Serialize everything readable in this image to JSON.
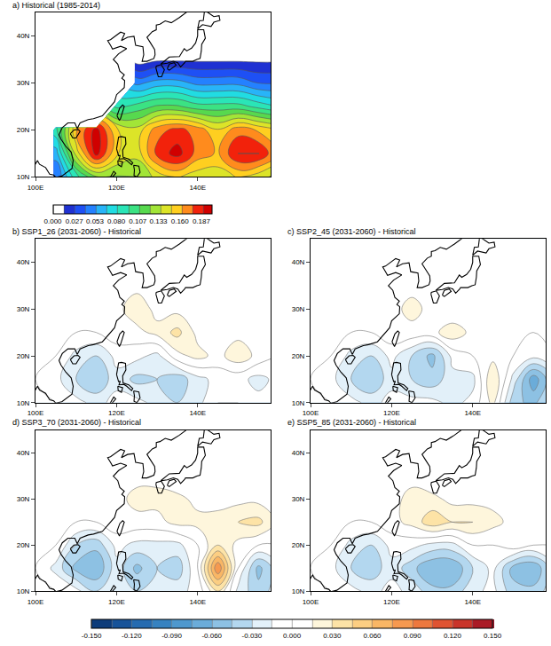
{
  "chart_data": [
    {
      "type": "contour",
      "title": "a) Historical (1985-2014)",
      "x": [
        100,
        105,
        110,
        115,
        120,
        125,
        130,
        135,
        140,
        145,
        150,
        155,
        160
      ],
      "y": [
        10,
        15,
        20,
        25,
        30,
        35,
        40,
        45
      ],
      "z": [
        [
          null,
          0.04,
          0.09,
          0.12,
          0.12,
          0.12,
          0.14,
          0.15,
          0.14,
          0.14,
          0.15,
          0.14,
          0.13
        ],
        [
          null,
          0.06,
          0.14,
          0.195,
          0.15,
          0.14,
          0.18,
          0.195,
          0.17,
          0.16,
          0.19,
          0.19,
          0.16
        ],
        [
          null,
          0.09,
          0.16,
          0.195,
          0.15,
          0.14,
          0.17,
          0.18,
          0.17,
          0.15,
          0.17,
          0.16,
          0.15
        ],
        [
          null,
          null,
          null,
          null,
          0.09,
          0.1,
          0.11,
          0.11,
          0.1,
          0.1,
          0.1,
          0.09,
          0.08
        ],
        [
          null,
          null,
          null,
          null,
          null,
          0.05,
          0.06,
          0.06,
          0.05,
          0.05,
          0.05,
          0.04,
          0.04
        ],
        [
          null,
          null,
          null,
          null,
          null,
          0.005,
          0.01,
          0.01,
          0.01,
          0.01,
          0.01,
          0.01,
          0.01
        ],
        [
          null,
          null,
          null,
          null,
          null,
          null,
          null,
          null,
          null,
          null,
          null,
          null,
          null
        ],
        [
          null,
          null,
          null,
          null,
          null,
          null,
          null,
          null,
          null,
          null,
          null,
          null,
          null
        ]
      ],
      "xlim": [
        100,
        158
      ],
      "ylim": [
        10,
        45
      ],
      "xticks": [
        {
          "value": 100,
          "label": "100E"
        },
        {
          "value": 120,
          "label": "120E"
        },
        {
          "value": 140,
          "label": "140E"
        }
      ],
      "yticks": [
        {
          "value": 10,
          "label": "10N"
        },
        {
          "value": 20,
          "label": "20N"
        },
        {
          "value": 30,
          "label": "30N"
        },
        {
          "value": 40,
          "label": "40N"
        }
      ],
      "colorbar": {
        "range": [
          0,
          0.2
        ],
        "ticks": [
          {
            "value": 0,
            "label": "0.000"
          },
          0.027,
          0.053,
          {
            "value": 0.08,
            "label": "0.080"
          },
          0.107,
          0.133,
          {
            "value": 0.16,
            "label": "0.160"
          },
          0.187
        ]
      }
    },
    {
      "type": "contour",
      "title": "b) SSP1_26 (2031-2060) - Historical",
      "x": [
        100,
        105,
        110,
        115,
        120,
        125,
        130,
        135,
        140,
        145,
        150,
        155,
        160
      ],
      "y": [
        10,
        15,
        20,
        25,
        30,
        35,
        40,
        45
      ],
      "z": [
        [
          0,
          0,
          -0.01,
          -0.02,
          -0.01,
          -0.01,
          -0.02,
          -0.03,
          -0.02,
          0,
          0,
          -0.01,
          0
        ],
        [
          0,
          -0.01,
          -0.03,
          -0.045,
          -0.02,
          -0.035,
          -0.03,
          -0.04,
          -0.02,
          -0.01,
          -0.01,
          -0.02,
          -0.01
        ],
        [
          0,
          0,
          -0.02,
          -0.03,
          -0.01,
          -0.01,
          -0.02,
          0.01,
          0.02,
          0.01,
          0.025,
          0.01,
          0
        ],
        [
          0,
          0,
          0,
          0,
          0.01,
          0.01,
          0.02,
          0.035,
          0.01,
          0,
          0.01,
          0,
          0
        ],
        [
          0,
          0,
          0,
          0,
          0.01,
          0.025,
          0.01,
          0.01,
          0,
          0,
          0,
          0,
          0
        ],
        [
          0,
          0,
          0,
          0,
          0,
          0.01,
          0,
          0,
          0,
          0,
          0,
          0,
          0
        ],
        [
          0,
          0,
          0,
          0,
          0,
          0,
          0,
          0,
          0,
          0,
          0,
          0,
          0
        ],
        [
          0,
          0,
          0,
          0,
          0,
          0,
          0,
          0,
          0,
          0,
          0,
          0,
          0
        ]
      ],
      "xlim": [
        100,
        158
      ],
      "ylim": [
        10,
        45
      ],
      "xticks": [
        {
          "value": 100,
          "label": "100E"
        },
        {
          "value": 120,
          "label": "120E"
        },
        {
          "value": 140,
          "label": "140E"
        }
      ],
      "yticks": [
        {
          "value": 10,
          "label": "10N"
        },
        {
          "value": 20,
          "label": "20N"
        },
        {
          "value": 30,
          "label": "30N"
        },
        {
          "value": 40,
          "label": "40N"
        }
      ],
      "colorbar": {
        "range": [
          -0.15,
          0.15
        ],
        "ticks": [
          {
            "value": -0.15,
            "label": "-0.150"
          },
          {
            "value": -0.12,
            "label": "-0.120"
          },
          {
            "value": -0.09,
            "label": "-0.090"
          },
          {
            "value": -0.06,
            "label": "-0.060"
          },
          {
            "value": -0.03,
            "label": "-0.030"
          },
          {
            "value": 0,
            "label": "0.000"
          },
          {
            "value": 0.03,
            "label": "0.030"
          },
          {
            "value": 0.06,
            "label": "0.060"
          },
          {
            "value": 0.09,
            "label": "0.090"
          },
          {
            "value": 0.12,
            "label": "0.120"
          },
          {
            "value": 0.15,
            "label": "0.150"
          }
        ]
      }
    },
    {
      "type": "contour",
      "title": "c) SSP2_45 (2031-2060) - Historical",
      "x": [
        100,
        105,
        110,
        115,
        120,
        125,
        130,
        135,
        140,
        145,
        150,
        155,
        160
      ],
      "y": [
        10,
        15,
        20,
        25,
        30,
        35,
        40,
        45
      ],
      "z": [
        [
          0,
          0,
          -0.01,
          -0.02,
          -0.01,
          -0.01,
          -0.01,
          -0.02,
          -0.01,
          0.02,
          -0.04,
          -0.05,
          -0.02
        ],
        [
          0,
          -0.01,
          -0.03,
          -0.045,
          -0.02,
          -0.03,
          -0.04,
          -0.02,
          -0.02,
          0.03,
          -0.02,
          -0.07,
          -0.03
        ],
        [
          0,
          0,
          -0.02,
          -0.03,
          -0.01,
          -0.03,
          -0.05,
          -0.01,
          0,
          0.01,
          0,
          -0.01,
          0
        ],
        [
          0,
          0,
          0,
          0,
          0.01,
          0.01,
          0.01,
          0.025,
          0.01,
          0,
          0.01,
          0,
          0
        ],
        [
          0,
          0,
          0,
          0,
          0.01,
          0.02,
          0.01,
          0,
          0,
          0,
          0,
          0,
          0
        ],
        [
          0,
          0,
          0,
          0,
          0,
          0.01,
          0,
          0,
          0,
          0,
          0,
          0,
          0
        ],
        [
          0,
          0,
          0,
          0,
          0,
          0,
          0,
          0,
          0,
          0,
          0,
          0,
          0
        ],
        [
          0,
          0,
          0,
          0,
          0,
          0,
          0,
          0,
          0,
          0,
          0,
          0,
          0
        ]
      ],
      "xlim": [
        100,
        158
      ],
      "ylim": [
        10,
        45
      ],
      "xticks": [
        {
          "value": 100,
          "label": "100E"
        },
        {
          "value": 120,
          "label": "120E"
        },
        {
          "value": 140,
          "label": "140E"
        }
      ],
      "yticks": [
        {
          "value": 10,
          "label": "10N"
        },
        {
          "value": 20,
          "label": "20N"
        },
        {
          "value": 30,
          "label": "30N"
        },
        {
          "value": 40,
          "label": "40N"
        }
      ],
      "colorbar": {
        "range": [
          -0.15,
          0.15
        ],
        "ticks": [
          {
            "value": -0.15,
            "label": "-0.150"
          },
          {
            "value": -0.12,
            "label": "-0.120"
          },
          {
            "value": -0.09,
            "label": "-0.090"
          },
          {
            "value": -0.06,
            "label": "-0.060"
          },
          {
            "value": -0.03,
            "label": "-0.030"
          },
          {
            "value": 0,
            "label": "0.000"
          },
          {
            "value": 0.03,
            "label": "0.030"
          },
          {
            "value": 0.06,
            "label": "0.060"
          },
          {
            "value": 0.09,
            "label": "0.090"
          },
          {
            "value": 0.12,
            "label": "0.120"
          },
          {
            "value": 0.15,
            "label": "0.150"
          }
        ]
      }
    },
    {
      "type": "contour",
      "title": "d) SSP3_70 (2031-2060) - Historical",
      "x": [
        100,
        105,
        110,
        115,
        120,
        125,
        130,
        135,
        140,
        145,
        150,
        155,
        160
      ],
      "y": [
        10,
        15,
        20,
        25,
        30,
        35,
        40,
        45
      ],
      "z": [
        [
          0,
          0,
          -0.01,
          -0.03,
          -0.02,
          -0.03,
          -0.03,
          -0.02,
          -0.01,
          0.03,
          -0.02,
          -0.04,
          -0.02
        ],
        [
          0,
          -0.02,
          -0.05,
          -0.06,
          -0.02,
          -0.05,
          -0.03,
          -0.04,
          0,
          0.09,
          0,
          -0.05,
          -0.02
        ],
        [
          0,
          0,
          -0.03,
          -0.04,
          -0.01,
          -0.02,
          -0.02,
          -0.02,
          0,
          0.03,
          0.01,
          0,
          0
        ],
        [
          0,
          0,
          0,
          0,
          0.01,
          0.01,
          0.01,
          0.02,
          0.02,
          0.02,
          0.03,
          0.035,
          0.01
        ],
        [
          0,
          0,
          0,
          0,
          0.01,
          0.02,
          0.02,
          0.02,
          0.01,
          0.01,
          0.01,
          0.01,
          0
        ],
        [
          0,
          0,
          0,
          0,
          0,
          0.01,
          0.01,
          0,
          0,
          0,
          0,
          0,
          0
        ],
        [
          0,
          0,
          0,
          0,
          0,
          0,
          0,
          0,
          0,
          0,
          0,
          0,
          0
        ],
        [
          0,
          0,
          0,
          0,
          0,
          0,
          0,
          0,
          0,
          0,
          0,
          0,
          0
        ]
      ],
      "xlim": [
        100,
        158
      ],
      "ylim": [
        10,
        45
      ],
      "xticks": [
        {
          "value": 100,
          "label": "100E"
        },
        {
          "value": 120,
          "label": "120E"
        },
        {
          "value": 140,
          "label": "140E"
        }
      ],
      "yticks": [
        {
          "value": 10,
          "label": "10N"
        },
        {
          "value": 20,
          "label": "20N"
        },
        {
          "value": 30,
          "label": "30N"
        },
        {
          "value": 40,
          "label": "40N"
        }
      ],
      "colorbar": {
        "range": [
          -0.15,
          0.15
        ],
        "ticks": [
          {
            "value": -0.15,
            "label": "-0.150"
          },
          {
            "value": -0.12,
            "label": "-0.120"
          },
          {
            "value": -0.09,
            "label": "-0.090"
          },
          {
            "value": -0.06,
            "label": "-0.060"
          },
          {
            "value": -0.03,
            "label": "-0.030"
          },
          {
            "value": 0,
            "label": "0.000"
          },
          {
            "value": 0.03,
            "label": "0.030"
          },
          {
            "value": 0.06,
            "label": "0.060"
          },
          {
            "value": 0.09,
            "label": "0.090"
          },
          {
            "value": 0.12,
            "label": "0.120"
          },
          {
            "value": 0.15,
            "label": "0.150"
          }
        ]
      }
    },
    {
      "type": "contour",
      "title": "e) SSP5_85 (2031-2060) - Historical",
      "x": [
        100,
        105,
        110,
        115,
        120,
        125,
        130,
        135,
        140,
        145,
        150,
        155,
        160
      ],
      "y": [
        10,
        15,
        20,
        25,
        30,
        35,
        40,
        45
      ],
      "z": [
        [
          0,
          0,
          -0.01,
          -0.02,
          -0.01,
          -0.02,
          -0.04,
          -0.04,
          -0.02,
          -0.01,
          -0.04,
          -0.04,
          -0.02
        ],
        [
          0,
          -0.01,
          -0.03,
          -0.04,
          -0.02,
          -0.04,
          -0.06,
          -0.06,
          -0.03,
          -0.01,
          -0.05,
          -0.06,
          -0.02
        ],
        [
          0,
          0,
          -0.02,
          -0.03,
          -0.01,
          -0.01,
          -0.02,
          -0.02,
          0,
          0,
          0.01,
          0,
          0
        ],
        [
          0,
          0,
          0,
          0,
          0.01,
          0.02,
          0.04,
          0.03,
          0.03,
          0.02,
          0.01,
          0,
          0
        ],
        [
          0,
          0,
          0,
          0,
          0.01,
          0.02,
          0.02,
          0.01,
          0.01,
          0.01,
          0,
          0,
          0
        ],
        [
          0,
          0,
          0,
          0,
          0,
          0.01,
          0,
          0,
          0,
          0,
          0,
          0,
          0
        ],
        [
          0,
          0,
          0,
          0,
          0,
          0,
          0,
          0,
          0,
          0,
          0,
          0,
          0
        ],
        [
          0,
          0,
          0,
          0,
          0,
          0,
          0,
          0,
          0,
          0,
          0,
          0,
          0
        ]
      ],
      "xlim": [
        100,
        158
      ],
      "ylim": [
        10,
        45
      ],
      "xticks": [
        {
          "value": 100,
          "label": "100E"
        },
        {
          "value": 120,
          "label": "120E"
        },
        {
          "value": 140,
          "label": "140E"
        }
      ],
      "yticks": [
        {
          "value": 10,
          "label": "10N"
        },
        {
          "value": 20,
          "label": "20N"
        },
        {
          "value": 30,
          "label": "30N"
        },
        {
          "value": 40,
          "label": "40N"
        }
      ],
      "colorbar": {
        "range": [
          -0.15,
          0.15
        ],
        "ticks": [
          {
            "value": -0.15,
            "label": "-0.150"
          },
          {
            "value": -0.12,
            "label": "-0.120"
          },
          {
            "value": -0.09,
            "label": "-0.090"
          },
          {
            "value": -0.06,
            "label": "-0.060"
          },
          {
            "value": -0.03,
            "label": "-0.030"
          },
          {
            "value": 0,
            "label": "0.000"
          },
          {
            "value": 0.03,
            "label": "0.030"
          },
          {
            "value": 0.06,
            "label": "0.060"
          },
          {
            "value": 0.09,
            "label": "0.090"
          },
          {
            "value": 0.12,
            "label": "0.120"
          },
          {
            "value": 0.15,
            "label": "0.150"
          }
        ]
      }
    }
  ]
}
